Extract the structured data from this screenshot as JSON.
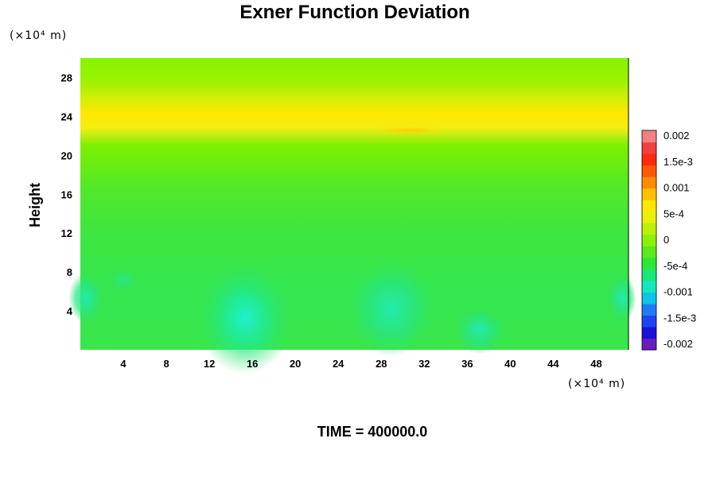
{
  "chart_data": {
    "type": "heatmap",
    "title": "Exner Function Deviation",
    "ylabel": "Height",
    "xlabel": "",
    "x_unit": "(×10⁴ m)",
    "y_unit": "(×10⁴ m)",
    "xlim": [
      0,
      51
    ],
    "ylim": [
      0,
      30
    ],
    "x_ticks": [
      "4",
      "8",
      "12",
      "16",
      "20",
      "24",
      "28",
      "32",
      "36",
      "40",
      "44",
      "48"
    ],
    "y_ticks": [
      "4",
      "8",
      "12",
      "16",
      "20",
      "24",
      "28"
    ],
    "colorbar": {
      "min": -0.002,
      "max": 0.002,
      "labels": [
        "0.002",
        "1.5e-3",
        "0.001",
        "5e-4",
        "0",
        "-5e-4",
        "-0.001",
        "-1.5e-3",
        "-0.002"
      ],
      "colors": [
        "#6a1bbf",
        "#1a0fd6",
        "#1d44f0",
        "#1f7cf7",
        "#10c4e8",
        "#12e8c0",
        "#18e87a",
        "#2ce836",
        "#5ee81e",
        "#8cf00a",
        "#bcf00a",
        "#e8f00a",
        "#ffe800",
        "#ffc000",
        "#ff8c00",
        "#ff5a00",
        "#ff2a10",
        "#f04040",
        "#f28080"
      ]
    },
    "field_description_values": {
      "band_24_height_value": 0.001,
      "surface_value": -0.0003,
      "minima": [
        {
          "x": 15.5,
          "y": 2,
          "value": -0.0009
        },
        {
          "x": 29,
          "y": 4,
          "value": -0.0007
        },
        {
          "x": 37,
          "y": 2,
          "value": -0.0005
        },
        {
          "x": 0.5,
          "y": 5,
          "value": -0.0005
        },
        {
          "x": 50.5,
          "y": 5,
          "value": -0.0005
        }
      ]
    }
  },
  "footer": {
    "time_label": "TIME = 400000.0"
  }
}
